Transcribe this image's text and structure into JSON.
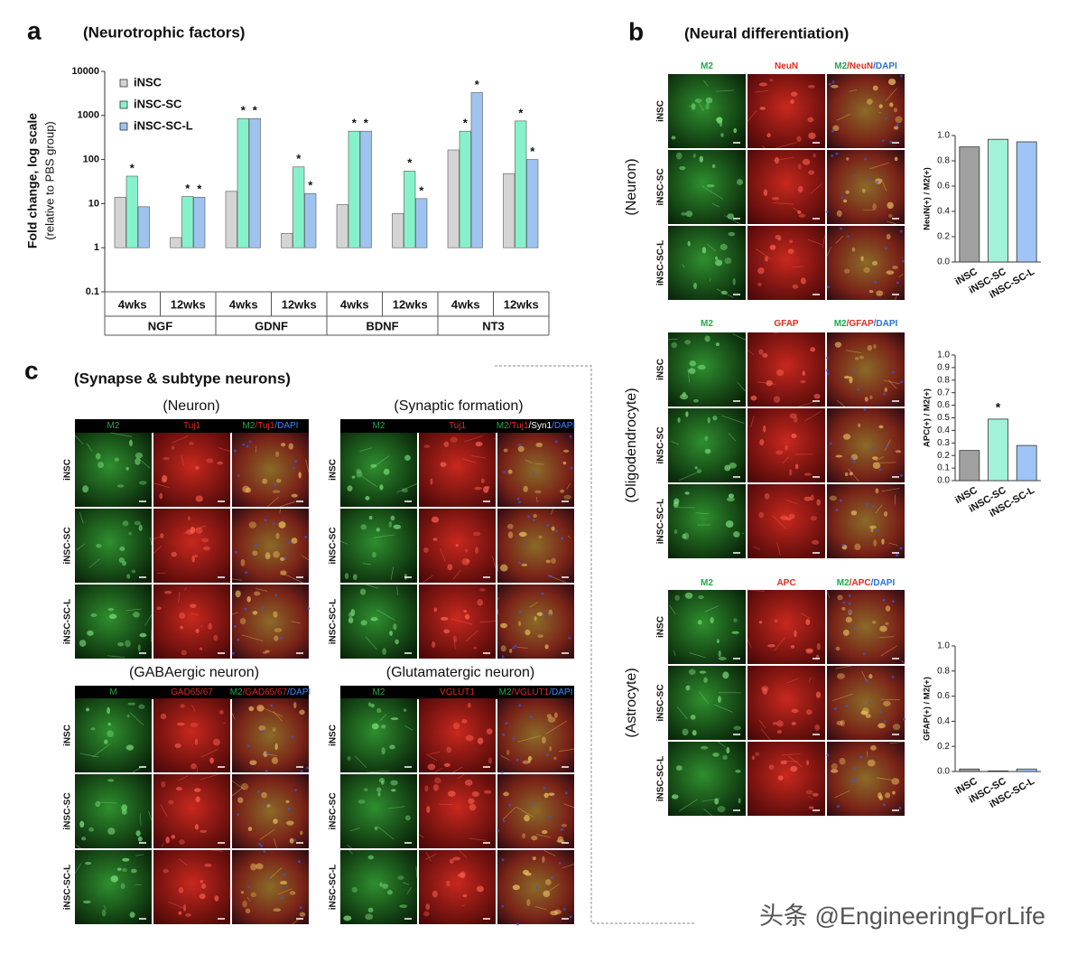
{
  "chart_data": [
    {
      "type": "bar",
      "panel": "a",
      "title": "(Neurotrophic factors)",
      "ylabel": "Fold change, log scale",
      "ylabel2": "(relative to PBS group)",
      "log_scale": true,
      "legend": "upper-left",
      "categories": [
        "4wks",
        "12wks",
        "4wks",
        "12wks",
        "4wks",
        "12wks",
        "4wks",
        "12wks"
      ],
      "groups": [
        "NGF",
        "GDNF",
        "BDNF",
        "NT3"
      ],
      "series": [
        {
          "name": "iNSC",
          "color": "#d4d4d4",
          "values": [
            14,
            1.7,
            19,
            2.1,
            9.5,
            6,
            165,
            48
          ]
        },
        {
          "name": "iNSC-SC",
          "color": "#86f2cc",
          "values": [
            42,
            14.5,
            850,
            68,
            440,
            55,
            440,
            750
          ],
          "markers": [
            "*",
            "*",
            "*",
            "*",
            "*",
            "*",
            "*",
            "*"
          ]
        },
        {
          "name": "iNSC-SC-L",
          "color": "#9fc3ef",
          "values": [
            8.5,
            14,
            850,
            17,
            440,
            13,
            3300,
            100
          ],
          "markers": [
            null,
            "*",
            "*",
            "*",
            "*",
            "*",
            "*",
            "*"
          ]
        }
      ],
      "ylim": [
        0.1,
        10000
      ],
      "yticks": [
        0.1,
        1,
        10,
        100,
        1000,
        10000
      ]
    },
    {
      "type": "bar",
      "ylabel": "NeuN(+) / M2(+)",
      "categories": [
        "iNSC",
        "iNSC-SC",
        "iNSC-SC-L"
      ],
      "values": [
        0.91,
        0.97,
        0.95
      ],
      "colors": [
        "#a0a0a0",
        "#a2f2da",
        "#9fc4f6"
      ],
      "ylim": [
        0,
        1
      ],
      "yticks": [
        {
          "value": 0,
          "label": "0.0"
        },
        0.2,
        0.4,
        0.6,
        0.8,
        {
          "value": 1,
          "label": "1.0"
        }
      ]
    },
    {
      "type": "bar",
      "ylabel": "APC(+) / M2(+)",
      "categories": [
        "iNSC",
        "iNSC-SC",
        "iNSC-SC-L"
      ],
      "values": [
        0.24,
        0.49,
        0.28
      ],
      "colors": [
        "#a0a0a0",
        "#a2f2da",
        "#9fc4f6"
      ],
      "markers": [
        null,
        "*",
        null
      ],
      "ylim": [
        0,
        1
      ],
      "yticks": [
        {
          "value": 0,
          "label": "0.0"
        },
        0.1,
        0.2,
        0.3,
        0.4,
        0.5,
        0.6,
        0.7,
        0.8,
        0.9,
        {
          "value": 1,
          "label": "1.0"
        }
      ]
    },
    {
      "type": "bar",
      "ylabel": "GFAP(+) / M2(+)",
      "categories": [
        "iNSC",
        "iNSC-SC",
        "iNSC-SC-L"
      ],
      "values": [
        0.02,
        0.005,
        0.02
      ],
      "colors": [
        "#a0a0a0",
        "#a2f2da",
        "#9fc4f6"
      ],
      "ylim": [
        0,
        1
      ],
      "yticks": [
        {
          "value": 0,
          "label": "0.0"
        },
        0.2,
        0.4,
        0.6,
        0.8,
        {
          "value": 1,
          "label": "1.0"
        }
      ]
    }
  ],
  "panel_b": {
    "letter": "b",
    "title": "(Neural differentiation)",
    "blocks": [
      {
        "label": "(Neuron)",
        "headers": [
          [
            "M2"
          ],
          [
            "NeuN"
          ],
          [
            "M2",
            "/NeuN",
            "/DAPI"
          ]
        ],
        "rows": [
          "iNSC",
          "iNSC-SC",
          "iNSC-SC-L"
        ]
      },
      {
        "label": "(Oligodendrocyte)",
        "headers": [
          [
            "M2"
          ],
          [
            "GFAP"
          ],
          [
            "M2",
            "/GFAP",
            "/DAPI"
          ]
        ],
        "rows": [
          "iNSC",
          "iNSC-SC",
          "iNSC-SC-L"
        ]
      },
      {
        "label": "(Astrocyte)",
        "headers": [
          [
            "M2"
          ],
          [
            "APC"
          ],
          [
            "M2",
            "/APC",
            "/DAPI"
          ]
        ],
        "rows": [
          "iNSC",
          "iNSC-SC",
          "iNSC-SC-L"
        ]
      }
    ]
  },
  "panel_c": {
    "letter": "c",
    "title": "(Synapse & subtype neurons)",
    "blocks": [
      {
        "label": "(Neuron)",
        "headers": [
          [
            "M2"
          ],
          [
            "Tuj1"
          ],
          [
            "M2",
            "/Tuj1",
            "/DAPI"
          ]
        ],
        "rows": [
          "iNSC",
          "iNSC-SC",
          "iNSC-SC-L"
        ]
      },
      {
        "label": "(Synaptic formation)",
        "headers": [
          [
            "M2"
          ],
          [
            "Tuj1"
          ],
          [
            "M2",
            "/Tuj1",
            "/Syn1",
            "/DAPI"
          ]
        ],
        "rows": [
          "iNSC",
          "iNSC-SC",
          "iNSC-SC-L"
        ]
      },
      {
        "label": "(GABAergic neuron)",
        "headers": [
          [
            "M"
          ],
          [
            "GAD65/67"
          ],
          [
            "M2",
            "/GAD65/67",
            "/DAPI"
          ]
        ],
        "rows": [
          "iNSC",
          "iNSC-SC",
          "iNSC-SC-L"
        ]
      },
      {
        "label": "(Glutamatergic neuron)",
        "headers": [
          [
            "M2"
          ],
          [
            "VGLUT1"
          ],
          [
            "M2",
            "/VGLUT1",
            "/DAPI"
          ]
        ],
        "rows": [
          "iNSC",
          "iNSC-SC",
          "iNSC-SC-L"
        ]
      }
    ]
  },
  "watermark": "头条 @EngineeringForLife"
}
